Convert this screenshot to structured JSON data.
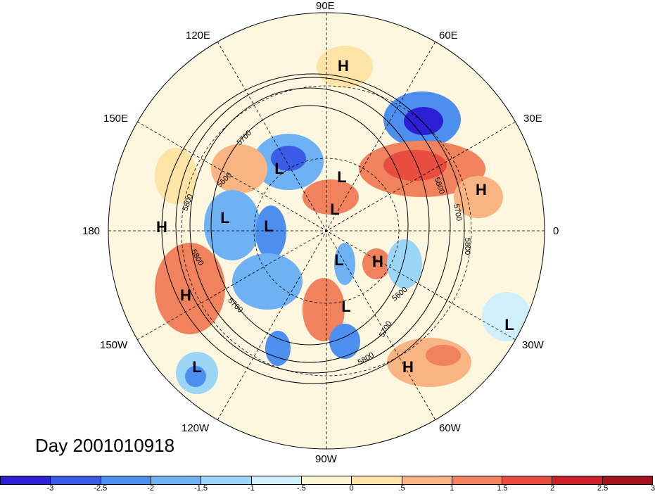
{
  "title": "Day 2001010918",
  "longitude_labels": {
    "e90": "90E",
    "e120": "120E",
    "e60": "60E",
    "e150": "150E",
    "e30": "30E",
    "d180": "180",
    "d0": "0",
    "w150": "150W",
    "w30": "30W",
    "w120": "120W",
    "w60": "60W",
    "w90": "90W"
  },
  "pressure_systems": [
    "H",
    "L",
    "L",
    "L",
    "L",
    "L",
    "L",
    "H",
    "H",
    "L",
    "H",
    "H",
    "L",
    "L",
    "H"
  ],
  "contour_labels": [
    "5700",
    "5600",
    "5800",
    "5800",
    "5700",
    "5800",
    "5600",
    "5700",
    "5800",
    "5700",
    "5800"
  ],
  "colorbar": {
    "colors": [
      "#2d1fd6",
      "#3a5ce6",
      "#4d8fef",
      "#6fb2f4",
      "#9bd6f7",
      "#cff0fb",
      "#fdf7d6",
      "#fde3a6",
      "#f8b583",
      "#f1825e",
      "#e94d40",
      "#cc2128",
      "#a3121f"
    ],
    "labels": [
      "-3",
      "-2.5",
      "-2",
      "-1.5",
      "-1",
      "-.5",
      "0",
      ".5",
      "1",
      "1.5",
      "2",
      "2.5",
      "3"
    ]
  }
}
